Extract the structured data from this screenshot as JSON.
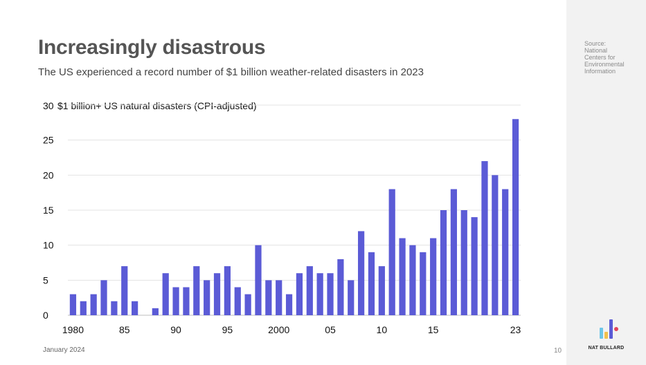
{
  "title": "Increasingly disastrous",
  "subtitle": "The US experienced a record number of $1 billion weather-related disasters in 2023",
  "footer": {
    "date": "January 2024",
    "page": "10"
  },
  "sidebar": {
    "source": "Source:\nNational\nCenters for\nEnvironmental\nInformation",
    "brand": "NAT BULLARD",
    "logo_colors": [
      "#6ec6e8",
      "#f2c14e",
      "#5b5bd6",
      "#e2445c"
    ]
  },
  "chart_data": {
    "type": "bar",
    "ylabel": "$1 billion+ US natural disasters (CPI-adjusted)",
    "ylim": [
      0,
      30
    ],
    "yticks": [
      "0",
      "5",
      "10",
      "15",
      "20",
      "25",
      "30"
    ],
    "years": [
      1980,
      1981,
      1982,
      1983,
      1984,
      1985,
      1986,
      1987,
      1988,
      1989,
      1990,
      1991,
      1992,
      1993,
      1994,
      1995,
      1996,
      1997,
      1998,
      1999,
      2000,
      2001,
      2002,
      2003,
      2004,
      2005,
      2006,
      2007,
      2008,
      2009,
      2010,
      2011,
      2012,
      2013,
      2014,
      2015,
      2016,
      2017,
      2018,
      2019,
      2020,
      2021,
      2022,
      2023
    ],
    "values": [
      3,
      2,
      3,
      5,
      2,
      7,
      2,
      0,
      1,
      6,
      4,
      4,
      7,
      5,
      6,
      7,
      4,
      3,
      10,
      5,
      5,
      3,
      6,
      7,
      6,
      6,
      8,
      5,
      12,
      9,
      7,
      18,
      11,
      10,
      9,
      11,
      15,
      18,
      15,
      14,
      22,
      20,
      18,
      28
    ],
    "xtick_labels": [
      "1980",
      "85",
      "90",
      "95",
      "2000",
      "05",
      "10",
      "15",
      "23"
    ],
    "xtick_years": [
      1980,
      1985,
      1990,
      1995,
      2000,
      2005,
      2010,
      2015,
      2023
    ],
    "bar_color": "#5b5bd6",
    "grid": true
  }
}
